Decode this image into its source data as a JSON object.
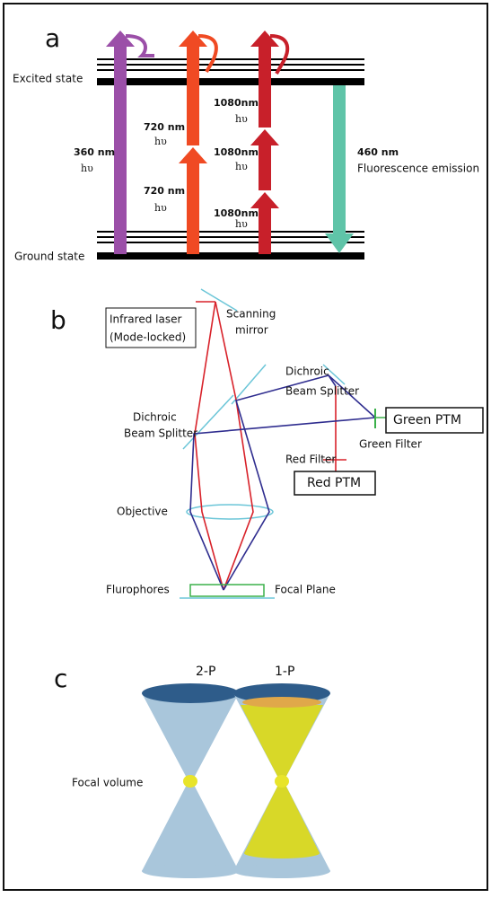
{
  "panel_a": {
    "label": "a",
    "excited_state": "Excited state",
    "ground_state": "Ground state",
    "one_photon": {
      "wavelength": "360 nm",
      "photon": "hυ"
    },
    "two_photon": [
      {
        "wavelength": "720 nm",
        "photon": "hυ"
      },
      {
        "wavelength": "720 nm",
        "photon": "hυ"
      }
    ],
    "three_photon": [
      {
        "wavelength": "1080nm",
        "photon": "hυ"
      },
      {
        "wavelength": "1080nm",
        "photon": "hυ"
      },
      {
        "wavelength": "1080nm",
        "photon": "hυ"
      }
    ],
    "emission": {
      "wavelength": "460 nm",
      "label": "Fluorescence emission"
    }
  },
  "panel_b": {
    "label": "b",
    "laser": [
      "Infrared laser",
      "(Mode-locked)"
    ],
    "scanning_mirror": [
      "Scanning",
      "mirror"
    ],
    "splitter_left": [
      "Dichroic",
      "Beam Splitter"
    ],
    "splitter_right": [
      "Dichroic",
      "Beam Splitter"
    ],
    "green_ptm": "Green PTM",
    "green_filter": "Green Filter",
    "red_filter": "Red Filter",
    "red_ptm": "Red PTM",
    "objective": "Objective",
    "fluorophores": "Flurophores",
    "focal_plane": "Focal Plane"
  },
  "panel_c": {
    "label": "c",
    "two_p": "2-P",
    "one_p": "1-P",
    "focal_volume": "Focal volume"
  }
}
